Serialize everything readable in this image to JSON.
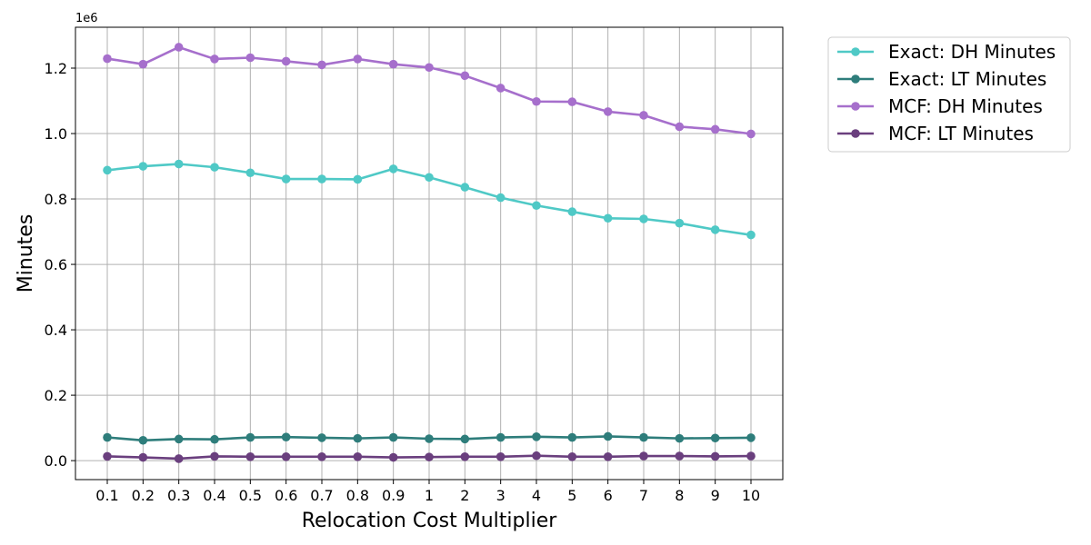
{
  "chart_data": {
    "type": "line",
    "title": "",
    "xlabel": "Relocation Cost Multiplier",
    "ylabel": "Minutes",
    "y_offset_label": "1e6",
    "categories": [
      "0.1",
      "0.2",
      "0.3",
      "0.4",
      "0.5",
      "0.6",
      "0.7",
      "0.8",
      "0.9",
      "1",
      "2",
      "3",
      "4",
      "5",
      "6",
      "7",
      "8",
      "9",
      "10"
    ],
    "ylim": [
      -0.058,
      1.325
    ],
    "yticks": [
      0.0,
      0.2,
      0.4,
      0.6,
      0.8,
      1.0,
      1.2
    ],
    "ytick_labels": [
      "0.0",
      "0.2",
      "0.4",
      "0.6",
      "0.8",
      "1.0",
      "1.2"
    ],
    "grid": true,
    "legend_position": "outside-top-right",
    "series": [
      {
        "name": "Exact: DH Minutes",
        "color": "#4fc9c6",
        "values": [
          0.888,
          0.9,
          0.907,
          0.897,
          0.88,
          0.861,
          0.861,
          0.86,
          0.892,
          0.866,
          0.836,
          0.804,
          0.78,
          0.761,
          0.741,
          0.739,
          0.726,
          0.706,
          0.69
        ]
      },
      {
        "name": "Exact: LT Minutes",
        "color": "#2e7d7b",
        "values": [
          0.071,
          0.062,
          0.066,
          0.065,
          0.071,
          0.072,
          0.07,
          0.068,
          0.071,
          0.067,
          0.066,
          0.071,
          0.073,
          0.071,
          0.074,
          0.071,
          0.068,
          0.069,
          0.07
        ]
      },
      {
        "name": "MCF: DH Minutes",
        "color": "#a66fcc",
        "values": [
          1.229,
          1.212,
          1.264,
          1.228,
          1.232,
          1.221,
          1.21,
          1.228,
          1.212,
          1.202,
          1.177,
          1.139,
          1.098,
          1.097,
          1.067,
          1.056,
          1.021,
          1.013,
          0.999
        ]
      },
      {
        "name": "MCF: LT Minutes",
        "color": "#6a3f7e",
        "values": [
          0.013,
          0.01,
          0.006,
          0.013,
          0.012,
          0.012,
          0.012,
          0.012,
          0.01,
          0.011,
          0.012,
          0.012,
          0.015,
          0.012,
          0.012,
          0.014,
          0.014,
          0.013,
          0.014
        ]
      }
    ]
  }
}
